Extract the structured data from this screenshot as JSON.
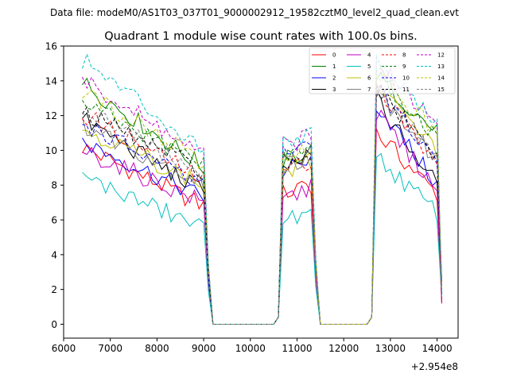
{
  "header": {
    "file_label": "Data file: modeM0/AS1T03_037T01_9000002912_19582cztM0_level2_quad_clean.evt"
  },
  "chart_data": {
    "type": "line",
    "title": "Quadrant 1 module wise count rates with 100.0s bins.",
    "xlabel": "",
    "ylabel": "",
    "x_offset_label": "+2.954e8",
    "xlim": [
      6000,
      14450
    ],
    "ylim": [
      -0.8,
      16
    ],
    "x_ticks": [
      6000,
      7000,
      8000,
      9000,
      10000,
      11000,
      12000,
      13000,
      14000
    ],
    "y_ticks": [
      0,
      2,
      4,
      6,
      8,
      10,
      12,
      14,
      16
    ],
    "legend_position": "top-right",
    "legend_columns": 4,
    "segments": [
      {
        "start": 6400,
        "end": 9000
      },
      {
        "start": 10700,
        "end": 11300
      },
      {
        "start": 12700,
        "end": 14000
      }
    ],
    "series": [
      {
        "name": "0",
        "color": "#ff0000",
        "dash": "solid",
        "seg1": [
          10.2,
          6.8
        ],
        "seg2": [
          7.5,
          8.0
        ],
        "seg3": [
          11.0,
          7.5
        ]
      },
      {
        "name": "1",
        "color": "#008000",
        "dash": "solid",
        "seg1": [
          13.9,
          9.0
        ],
        "seg2": [
          9.4,
          10.0
        ],
        "seg3": [
          14.3,
          11.0
        ]
      },
      {
        "name": "2",
        "color": "#0000ff",
        "dash": "solid",
        "seg1": [
          10.5,
          7.3
        ],
        "seg2": [
          8.8,
          9.3
        ],
        "seg3": [
          12.7,
          8.0
        ]
      },
      {
        "name": "3",
        "color": "#000000",
        "dash": "solid",
        "seg1": [
          11.8,
          7.6
        ],
        "seg2": [
          9.0,
          9.6
        ],
        "seg3": [
          12.9,
          8.0
        ]
      },
      {
        "name": "4",
        "color": "#bf00bf",
        "dash": "solid",
        "seg1": [
          10.0,
          7.0
        ],
        "seg2": [
          7.2,
          7.8
        ],
        "seg3": [
          12.1,
          7.8
        ]
      },
      {
        "name": "5",
        "color": "#00bfbf",
        "dash": "solid",
        "seg1": [
          8.5,
          5.5
        ],
        "seg2": [
          6.0,
          6.2
        ],
        "seg3": [
          9.6,
          6.4
        ]
      },
      {
        "name": "6",
        "color": "#bfbf00",
        "dash": "solid",
        "seg1": [
          11.3,
          8.0
        ],
        "seg2": [
          8.6,
          9.3
        ],
        "seg3": [
          13.7,
          10.0
        ]
      },
      {
        "name": "7",
        "color": "#808080",
        "dash": "solid",
        "seg1": [
          11.5,
          8.1
        ],
        "seg2": [
          9.3,
          9.5
        ],
        "seg3": [
          13.4,
          9.4
        ]
      },
      {
        "name": "8",
        "color": "#ff0000",
        "dash": "dashed",
        "seg1": [
          12.1,
          8.3
        ],
        "seg2": [
          8.8,
          9.5
        ],
        "seg3": [
          13.8,
          9.0
        ]
      },
      {
        "name": "9",
        "color": "#008000",
        "dash": "dashed",
        "seg1": [
          12.7,
          9.2
        ],
        "seg2": [
          9.6,
          10.1
        ],
        "seg3": [
          14.6,
          10.7
        ]
      },
      {
        "name": "10",
        "color": "#0000ff",
        "dash": "dashed",
        "seg1": [
          11.6,
          7.9
        ],
        "seg2": [
          9.9,
          10.4
        ],
        "seg3": [
          13.6,
          9.2
        ]
      },
      {
        "name": "11",
        "color": "#000000",
        "dash": "dashed",
        "seg1": [
          12.2,
          8.8
        ],
        "seg2": [
          9.3,
          9.9
        ],
        "seg3": [
          13.6,
          9.6
        ]
      },
      {
        "name": "12",
        "color": "#bf00bf",
        "dash": "dashed",
        "seg1": [
          14.0,
          9.7
        ],
        "seg2": [
          10.2,
          10.8
        ],
        "seg3": [
          15.0,
          11.5
        ]
      },
      {
        "name": "13",
        "color": "#00bfbf",
        "dash": "dashed",
        "seg1": [
          15.2,
          10.1
        ],
        "seg2": [
          10.5,
          11.0
        ],
        "seg3": [
          15.2,
          11.5
        ]
      },
      {
        "name": "14",
        "color": "#bfbf00",
        "dash": "dashed",
        "seg1": [
          13.4,
          9.3
        ],
        "seg2": [
          9.6,
          10.3
        ],
        "seg3": [
          14.5,
          11.0
        ]
      },
      {
        "name": "15",
        "color": "#808080",
        "dash": "dashed",
        "seg1": [
          12.6,
          8.5
        ],
        "seg2": [
          9.0,
          9.7
        ],
        "seg3": [
          13.4,
          9.7
        ]
      }
    ]
  }
}
